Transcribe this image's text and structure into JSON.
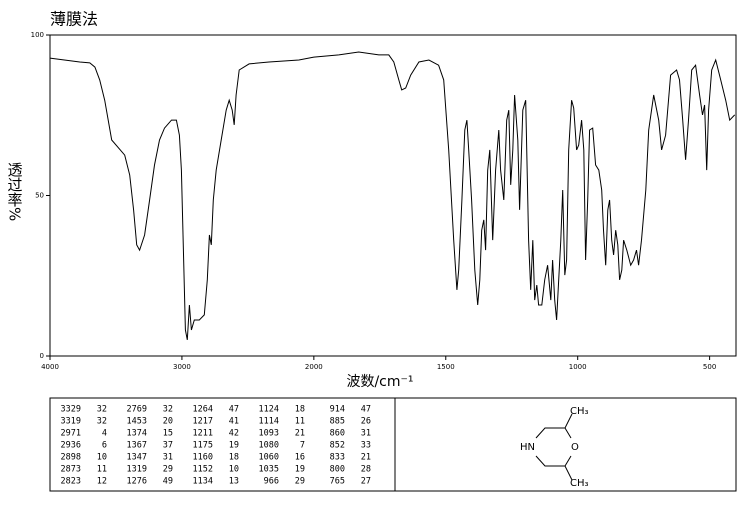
{
  "chart_data": {
    "type": "line",
    "title": "薄膜法",
    "xlabel": "波数/cm⁻¹",
    "ylabel": "透过率%",
    "xlim": [
      4000,
      400
    ],
    "ylim": [
      0,
      100
    ],
    "xticks": [
      4000,
      3000,
      2000,
      1500,
      1000,
      500
    ],
    "yticks": [
      0,
      50,
      100
    ],
    "x": [
      4000,
      3774,
      3698,
      3660,
      3623,
      3585,
      3532,
      3434,
      3396,
      3366,
      3343,
      3321,
      3283,
      3245,
      3208,
      3170,
      3132,
      3079,
      3042,
      3019,
      3004,
      2989,
      2974,
      2959,
      2943,
      2928,
      2906,
      2868,
      2830,
      2808,
      2792,
      2777,
      2762,
      2740,
      2702,
      2664,
      2642,
      2619,
      2604,
      2589,
      2566,
      2491,
      2340,
      2113,
      2000,
      1905,
      1830,
      1754,
      1716,
      1697,
      1678,
      1667,
      1652,
      1633,
      1602,
      1564,
      1527,
      1508,
      1489,
      1470,
      1458,
      1451,
      1439,
      1428,
      1420,
      1413,
      1402,
      1390,
      1379,
      1371,
      1364,
      1356,
      1349,
      1341,
      1333,
      1322,
      1311,
      1299,
      1292,
      1280,
      1269,
      1261,
      1254,
      1246,
      1239,
      1227,
      1220,
      1208,
      1197,
      1186,
      1178,
      1170,
      1163,
      1155,
      1148,
      1136,
      1125,
      1114,
      1102,
      1095,
      1087,
      1080,
      1072,
      1064,
      1057,
      1049,
      1042,
      1034,
      1023,
      1015,
      1004,
      996,
      985,
      977,
      970,
      962,
      955,
      943,
      932,
      920,
      909,
      902,
      894,
      886,
      879,
      871,
      864,
      856,
      848,
      841,
      833,
      826,
      814,
      799,
      788,
      777,
      769,
      758,
      742,
      731,
      712,
      693,
      682,
      667,
      648,
      625,
      614,
      602,
      591,
      580,
      568,
      553,
      538,
      527,
      519,
      511,
      504,
      492,
      477,
      458,
      439,
      424,
      405
    ],
    "series": [
      {
        "color": "#000000",
        "values": [
          92.8,
          91.6,
          91.3,
          90.0,
          86.0,
          79.7,
          67.3,
          62.6,
          56.4,
          45.5,
          34.6,
          33.0,
          37.7,
          48.6,
          59.5,
          67.3,
          71.0,
          73.5,
          73.5,
          68.8,
          57.9,
          33.0,
          8.1,
          5.0,
          15.9,
          8.1,
          11.2,
          11.2,
          12.8,
          23.7,
          37.7,
          34.6,
          48.6,
          57.9,
          67.3,
          76.6,
          79.7,
          76.6,
          72.0,
          81.3,
          89.1,
          91.0,
          91.6,
          92.2,
          93.1,
          93.8,
          94.7,
          93.8,
          93.8,
          91.6,
          86.0,
          82.9,
          83.5,
          87.5,
          91.6,
          92.2,
          90.6,
          86.0,
          64.2,
          36.1,
          20.6,
          26.8,
          48.6,
          70.4,
          73.5,
          64.2,
          48.6,
          26.8,
          15.9,
          23.7,
          39.2,
          42.4,
          33.0,
          57.9,
          64.2,
          36.1,
          57.9,
          70.4,
          57.9,
          48.6,
          73.5,
          76.6,
          53.3,
          64.2,
          81.3,
          67.3,
          45.5,
          76.6,
          79.7,
          36.1,
          20.6,
          36.1,
          17.4,
          22.1,
          15.9,
          15.9,
          23.7,
          28.3,
          17.4,
          29.9,
          17.4,
          11.2,
          23.7,
          36.1,
          51.7,
          25.2,
          29.9,
          64.2,
          79.7,
          77.3,
          64.2,
          65.7,
          73.5,
          64.2,
          29.9,
          48.6,
          70.4,
          71.0,
          59.5,
          57.9,
          51.7,
          39.2,
          28.3,
          45.5,
          48.6,
          36.1,
          31.5,
          39.2,
          34.6,
          23.7,
          26.8,
          36.1,
          33.0,
          28.3,
          29.9,
          33.0,
          28.3,
          36.1,
          51.7,
          70.4,
          81.3,
          73.5,
          64.2,
          68.8,
          87.5,
          89.1,
          86.0,
          73.5,
          61.1,
          73.5,
          89.1,
          90.6,
          81.3,
          75.1,
          78.2,
          57.9,
          76.6,
          89.1,
          92.2,
          86.0,
          79.7,
          73.5,
          75.1
        ]
      }
    ]
  },
  "peak_table": {
    "columns": [
      [
        [
          3329,
          32
        ],
        [
          3319,
          32
        ],
        [
          2971,
          4
        ],
        [
          2936,
          6
        ],
        [
          2898,
          10
        ],
        [
          2873,
          11
        ],
        [
          2823,
          12
        ]
      ],
      [
        [
          2769,
          32
        ],
        [
          1453,
          20
        ],
        [
          1374,
          15
        ],
        [
          1367,
          37
        ],
        [
          1347,
          31
        ],
        [
          1319,
          29
        ],
        [
          1276,
          49
        ]
      ],
      [
        [
          1264,
          47
        ],
        [
          1217,
          41
        ],
        [
          1211,
          42
        ],
        [
          1175,
          19
        ],
        [
          1160,
          18
        ],
        [
          1152,
          10
        ],
        [
          1134,
          13
        ]
      ],
      [
        [
          1124,
          18
        ],
        [
          1114,
          11
        ],
        [
          1093,
          21
        ],
        [
          1080,
          7
        ],
        [
          1060,
          16
        ],
        [
          1035,
          19
        ],
        [
          966,
          29
        ]
      ],
      [
        [
          914,
          47
        ],
        [
          885,
          26
        ],
        [
          860,
          31
        ],
        [
          852,
          33
        ],
        [
          833,
          21
        ],
        [
          800,
          28
        ],
        [
          765,
          27
        ]
      ]
    ]
  },
  "structure": {
    "labels": [
      "CH₃",
      "HN",
      "O",
      "CH₃"
    ]
  }
}
